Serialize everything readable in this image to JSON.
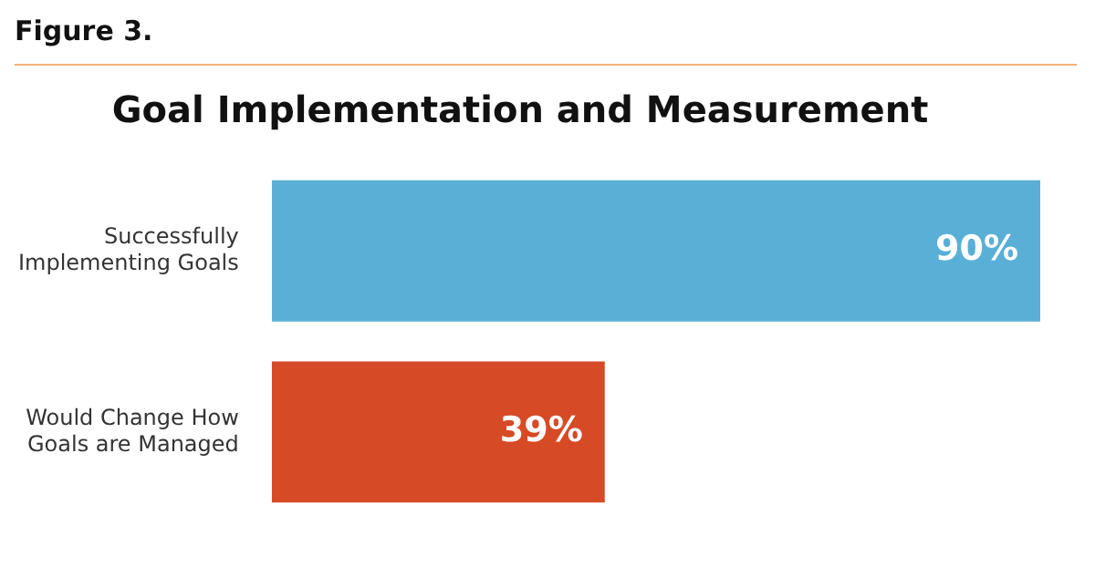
{
  "chart_data": {
    "type": "bar",
    "orientation": "horizontal",
    "title": "Goal Implementation and Measurement",
    "annotations": [
      "Figure 3."
    ],
    "categories": [
      "Successfully Implementing Goals",
      "Would Change How Goals are Managed"
    ],
    "values": [
      90,
      39
    ],
    "colors": [
      "#5aafd7",
      "#d64a26"
    ],
    "value_labels": [
      "90%",
      "39%"
    ],
    "legend": false
  }
}
